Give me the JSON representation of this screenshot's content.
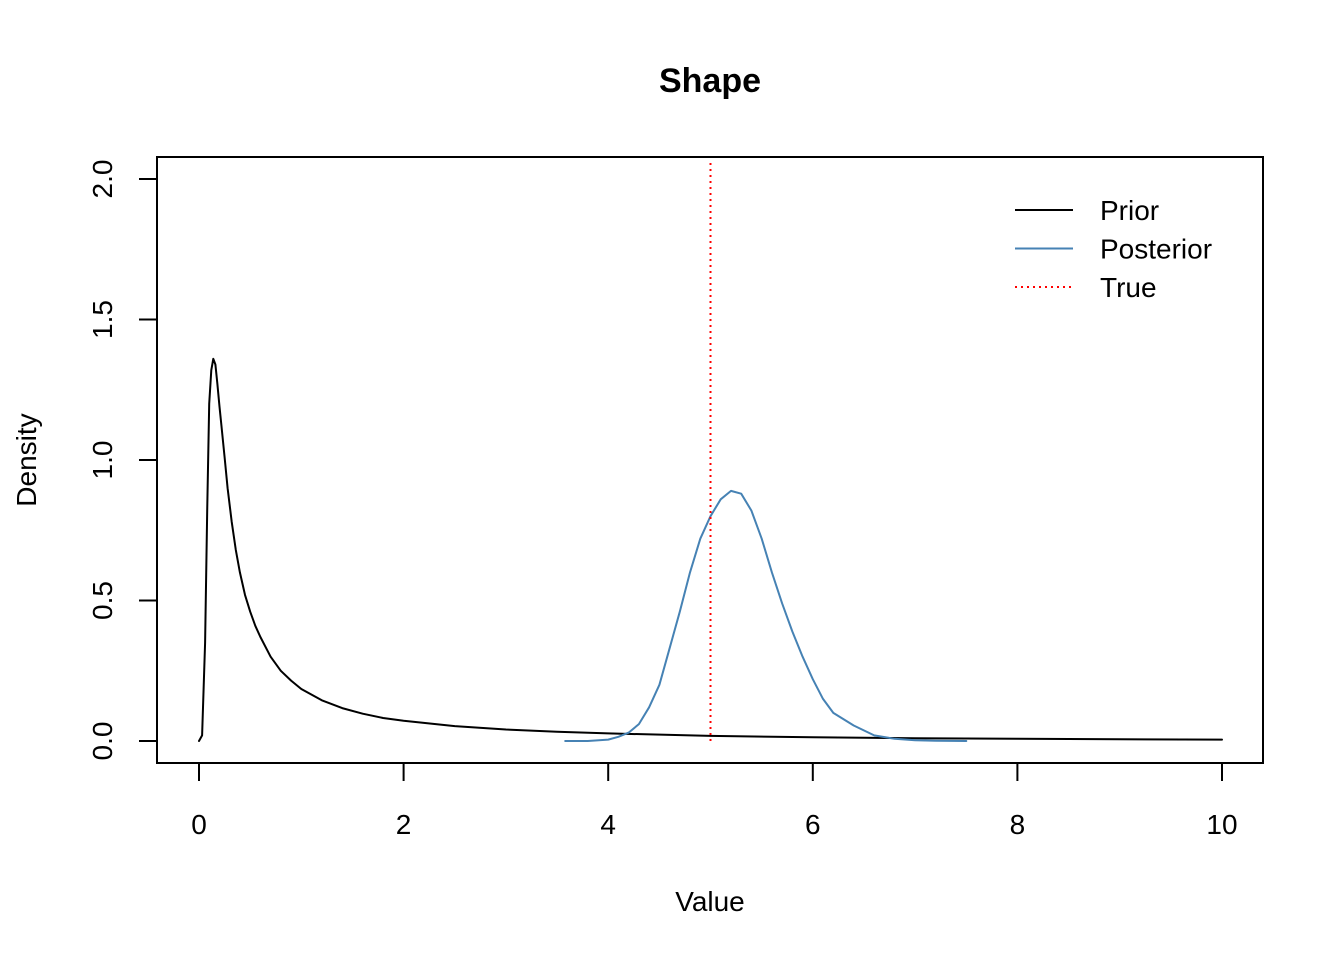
{
  "colors": {
    "prior": "#000000",
    "posterior": "#4682B4",
    "true": "#FF0000",
    "axis": "#000000",
    "background": "#FFFFFF"
  },
  "chart_data": {
    "type": "line",
    "title": "Shape",
    "xlabel": "Value",
    "ylabel": "Density",
    "xlim": [
      0,
      10
    ],
    "ylim": [
      0,
      2
    ],
    "x_ticks": [
      0,
      2,
      4,
      6,
      8,
      10
    ],
    "x_tick_labels": [
      "0",
      "2",
      "4",
      "6",
      "8",
      "10"
    ],
    "y_ticks": [
      0,
      0.5,
      1,
      1.5,
      2
    ],
    "y_tick_labels": [
      "0.0",
      "0.5",
      "1.0",
      "1.5",
      "2.0"
    ],
    "grid": false,
    "legend": {
      "position": "top-right",
      "entries": [
        {
          "label": "Prior",
          "style": "solid",
          "color": "#000000"
        },
        {
          "label": "Posterior",
          "style": "solid",
          "color": "#4682B4"
        },
        {
          "label": "True",
          "style": "dotted",
          "color": "#FF0000"
        }
      ]
    },
    "series": [
      {
        "name": "Prior",
        "style": "solid",
        "color": "#000000",
        "x": [
          0.0,
          0.03,
          0.06,
          0.08,
          0.1,
          0.12,
          0.14,
          0.16,
          0.18,
          0.2,
          0.22,
          0.25,
          0.28,
          0.32,
          0.36,
          0.4,
          0.45,
          0.5,
          0.55,
          0.6,
          0.7,
          0.8,
          0.9,
          1.0,
          1.2,
          1.4,
          1.6,
          1.8,
          2.0,
          2.5,
          3.0,
          3.5,
          4.0,
          5.0,
          6.0,
          7.0,
          8.0,
          9.0,
          10.0
        ],
        "y": [
          0.0,
          0.02,
          0.35,
          0.82,
          1.2,
          1.32,
          1.36,
          1.34,
          1.27,
          1.19,
          1.12,
          1.01,
          0.9,
          0.78,
          0.68,
          0.6,
          0.52,
          0.46,
          0.41,
          0.37,
          0.3,
          0.25,
          0.215,
          0.185,
          0.145,
          0.117,
          0.097,
          0.082,
          0.072,
          0.053,
          0.041,
          0.033,
          0.027,
          0.018,
          0.013,
          0.01,
          0.008,
          0.006,
          0.005
        ]
      },
      {
        "name": "Posterior",
        "style": "solid",
        "color": "#4682B4",
        "x": [
          3.58,
          3.8,
          4.0,
          4.1,
          4.2,
          4.3,
          4.4,
          4.5,
          4.6,
          4.7,
          4.8,
          4.9,
          5.0,
          5.1,
          5.2,
          5.3,
          5.4,
          5.5,
          5.6,
          5.7,
          5.8,
          5.9,
          6.0,
          6.1,
          6.2,
          6.4,
          6.6,
          6.8,
          7.0,
          7.2,
          7.5
        ],
        "y": [
          0.0,
          0.0,
          0.005,
          0.015,
          0.03,
          0.06,
          0.12,
          0.2,
          0.33,
          0.46,
          0.6,
          0.72,
          0.8,
          0.86,
          0.89,
          0.88,
          0.82,
          0.72,
          0.6,
          0.49,
          0.39,
          0.3,
          0.22,
          0.15,
          0.1,
          0.055,
          0.02,
          0.008,
          0.003,
          0.001,
          0.0
        ]
      },
      {
        "name": "True",
        "style": "dotted",
        "color": "#FF0000",
        "x": [
          5.0,
          5.0
        ],
        "y": [
          0,
          2.06
        ]
      }
    ]
  }
}
